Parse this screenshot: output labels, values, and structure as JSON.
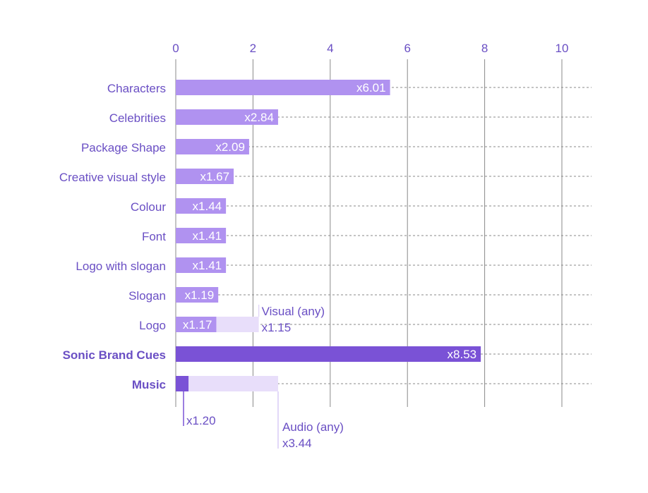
{
  "chart_data": {
    "type": "bar",
    "orientation": "horizontal",
    "xlim": [
      0,
      10
    ],
    "xticks": [
      "0",
      "2",
      "4",
      "6",
      "8",
      "10"
    ],
    "grid": true,
    "categories": [
      "Characters",
      "Celebrities",
      "Package Shape",
      "Creative visual style",
      "Colour",
      "Font",
      "Logo with slogan",
      "Slogan",
      "Logo",
      "Sonic Brand Cues",
      "Music"
    ],
    "bold_categories": [
      "Sonic Brand Cues",
      "Music"
    ],
    "values": [
      5.55,
      2.65,
      1.9,
      1.5,
      1.3,
      1.3,
      1.3,
      1.1,
      1.05,
      7.9,
      0.33
    ],
    "value_labels": [
      "x6.01",
      "x2.84",
      "x2.09",
      "x1.67",
      "x1.44",
      "x1.41",
      "x1.41",
      "x1.19",
      "x1.17",
      "x8.53",
      ""
    ],
    "background_bars": [
      {
        "category": "Logo",
        "value": 2.15,
        "label_line1": "Visual (any)",
        "label_line2": "x1.15"
      },
      {
        "category": "Music",
        "value": 2.65,
        "label_line1": "Audio (any)",
        "label_line2": "x3.44"
      }
    ],
    "callouts": [
      {
        "category": "Music",
        "value": 0.25,
        "label": "x1.20"
      }
    ],
    "colors": {
      "bar": "#b092f0",
      "bar_emphasis": "#7a52d6",
      "background_bar": "#e8defa",
      "text": "#6a4fc4",
      "gridline": "#888888"
    }
  }
}
